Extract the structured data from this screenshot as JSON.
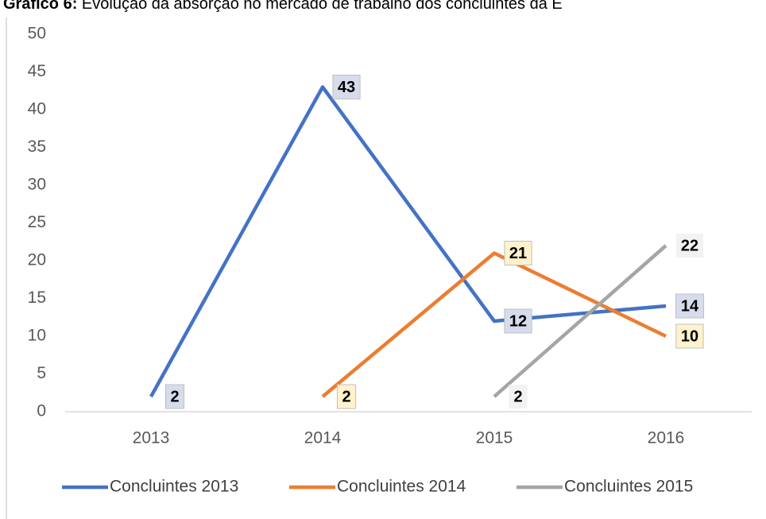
{
  "chart_data": {
    "type": "line",
    "title_label": "Gráfico 6:",
    "title": "Evolução da absorção no mercado de trabalho dos concluintes da E",
    "categories": [
      "2013",
      "2014",
      "2015",
      "2016"
    ],
    "series": [
      {
        "name": "Concluintes 2013",
        "color": "#4472c4",
        "label_fill": "#d6dcec",
        "values": [
          2,
          43,
          12,
          14
        ]
      },
      {
        "name": "Concluintes 2014",
        "color": "#ed7d31",
        "label_fill": "#fff2cc",
        "values": [
          null,
          2,
          21,
          10
        ]
      },
      {
        "name": "Concluintes 2015",
        "color": "#a5a5a5",
        "label_fill": "#f2f2f2",
        "values": [
          null,
          null,
          2,
          22
        ]
      }
    ],
    "ylim": [
      0,
      50
    ],
    "yticks": [
      0,
      5,
      10,
      15,
      20,
      25,
      30,
      35,
      40,
      45,
      50
    ],
    "legend": "bottom"
  }
}
